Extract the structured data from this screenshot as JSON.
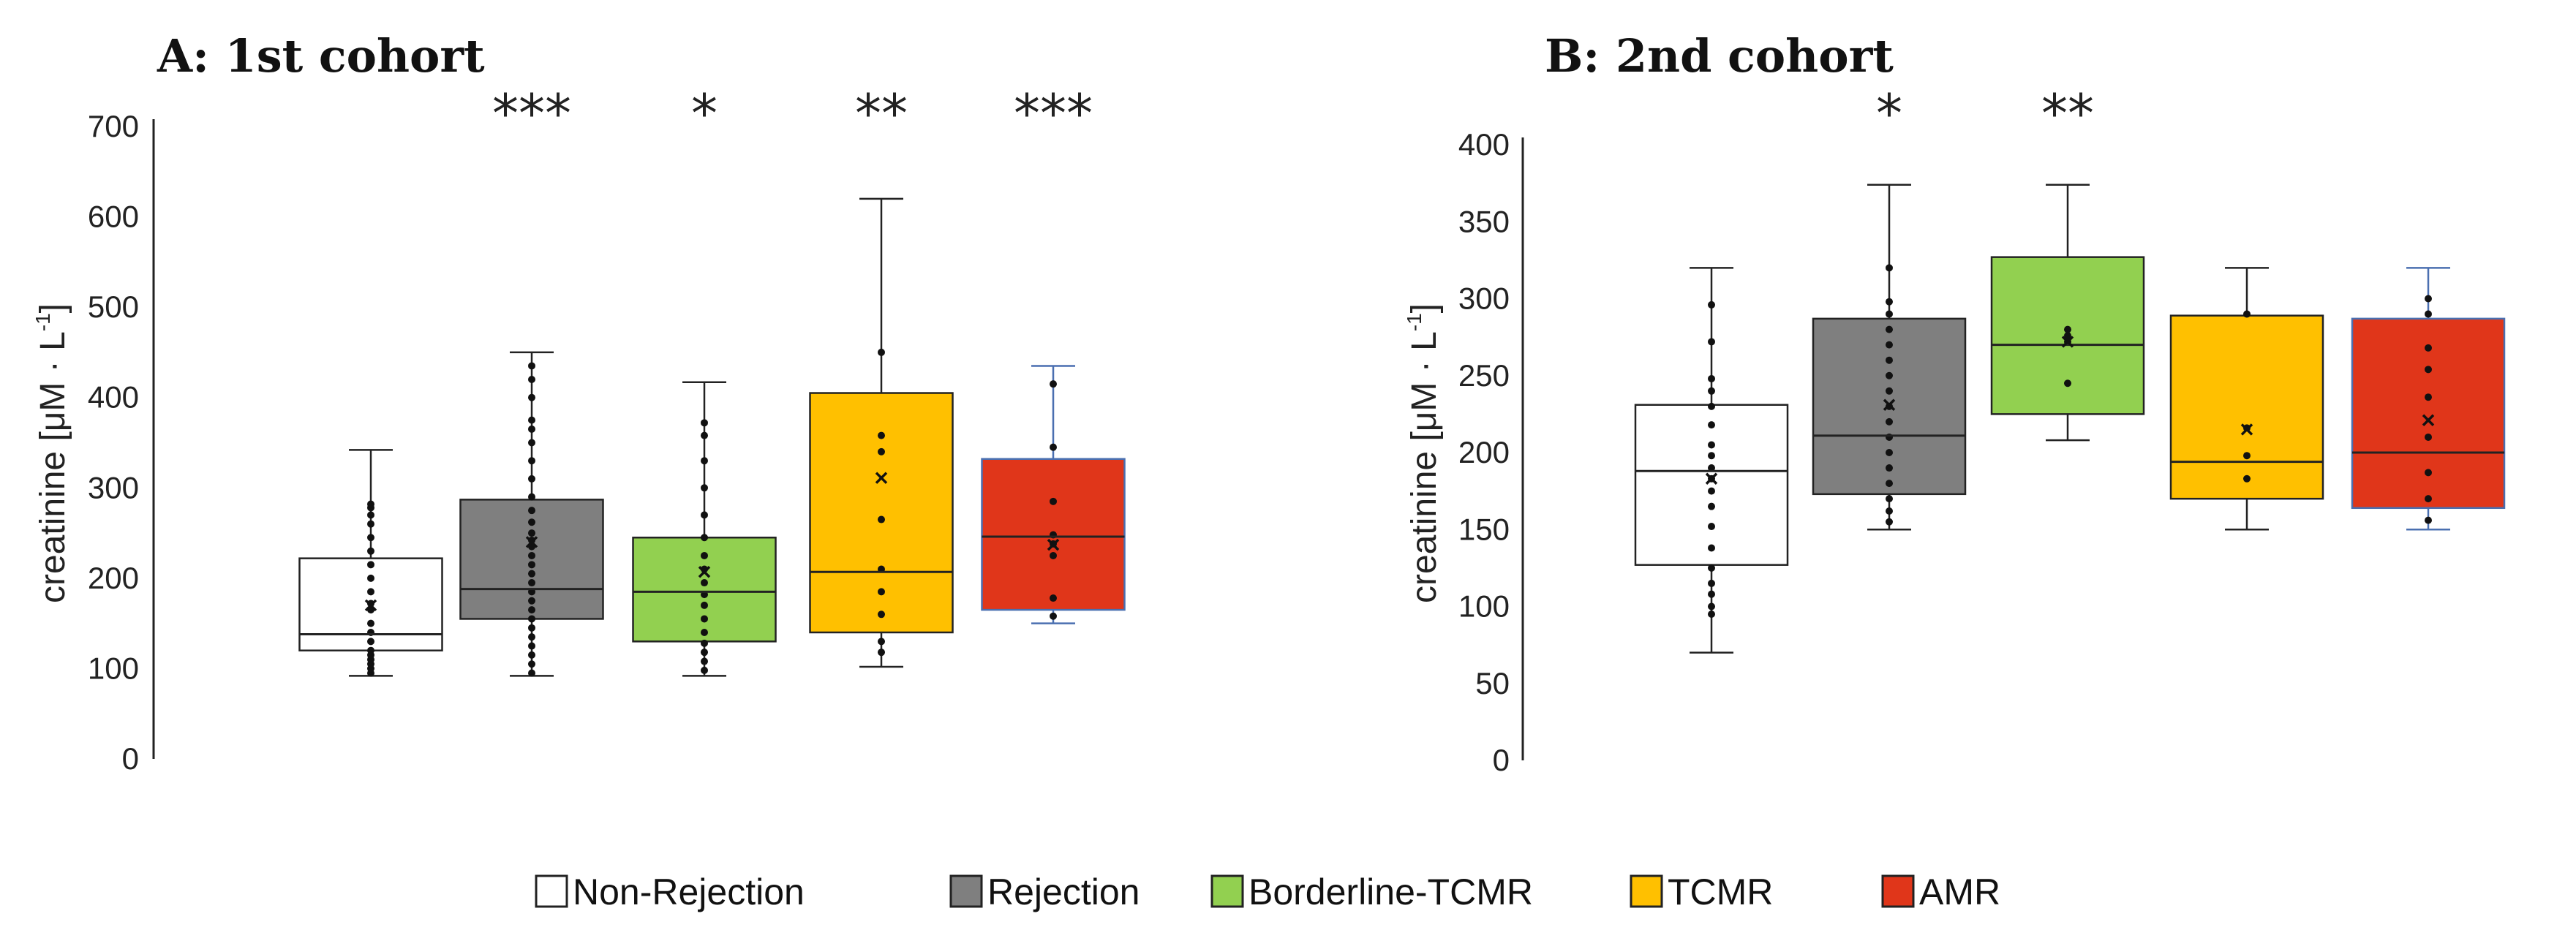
{
  "legend": [
    {
      "label": "Non-Rejection",
      "color": "#ffffff"
    },
    {
      "label": "Rejection",
      "color": "#7f7f7f"
    },
    {
      "label": "Borderline-TCMR",
      "color": "#92d050"
    },
    {
      "label": "TCMR",
      "color": "#ffc000"
    },
    {
      "label": "AMR",
      "color": "#e0361a"
    }
  ],
  "chart_data": [
    {
      "type": "box",
      "title": "A: 1st cohort",
      "ylabel": "creatinine [μM · L",
      "ylabel_sup": "-1",
      "ylabel_close": "]",
      "ylim": [
        0,
        700
      ],
      "yticks": [
        0,
        100,
        200,
        300,
        400,
        500,
        600,
        700
      ],
      "categories": [
        "Non-Rejection",
        "Rejection",
        "Borderline-TCMR",
        "TCMR",
        "AMR"
      ],
      "significance": [
        "",
        "***",
        "*",
        "**",
        "***"
      ],
      "boxes": [
        {
          "name": "Non-Rejection",
          "min": 92,
          "q1": 120,
          "median": 138,
          "q3": 222,
          "max": 342,
          "mean": 170,
          "points": [
            95,
            100,
            105,
            110,
            115,
            120,
            130,
            140,
            150,
            165,
            172,
            185,
            200,
            215,
            230,
            245,
            260,
            270,
            278,
            282
          ]
        },
        {
          "name": "Rejection",
          "min": 92,
          "q1": 155,
          "median": 188,
          "q3": 287,
          "max": 450,
          "mean": 240,
          "points": [
            95,
            105,
            115,
            125,
            135,
            145,
            155,
            165,
            175,
            185,
            195,
            205,
            215,
            225,
            235,
            242,
            250,
            262,
            275,
            290,
            310,
            330,
            350,
            365,
            375,
            400,
            420,
            435
          ]
        },
        {
          "name": "Borderline-TCMR",
          "min": 92,
          "q1": 130,
          "median": 185,
          "q3": 245,
          "max": 417,
          "mean": 207,
          "points": [
            98,
            108,
            118,
            128,
            140,
            155,
            170,
            182,
            195,
            210,
            225,
            245,
            270,
            300,
            330,
            358,
            372
          ]
        },
        {
          "name": "TCMR",
          "min": 102,
          "q1": 140,
          "median": 207,
          "q3": 405,
          "max": 620,
          "mean": 311,
          "points": [
            118,
            130,
            160,
            185,
            210,
            265,
            340,
            358,
            450
          ]
        },
        {
          "name": "AMR",
          "min": 150,
          "q1": 165,
          "median": 246,
          "q3": 332,
          "max": 435,
          "mean": 237,
          "points": [
            158,
            178,
            225,
            238,
            248,
            285,
            345,
            415
          ]
        }
      ]
    },
    {
      "type": "box",
      "title": "B: 2nd cohort",
      "ylabel": "creatinine [μM · L",
      "ylabel_sup": "-1",
      "ylabel_close": "]",
      "ylim": [
        0,
        400
      ],
      "yticks": [
        0,
        50,
        100,
        150,
        200,
        250,
        300,
        350,
        400
      ],
      "categories": [
        "Non-Rejection",
        "Rejection",
        "Borderline-TCMR",
        "TCMR",
        "AMR"
      ],
      "significance": [
        "",
        "*",
        "**",
        "",
        ""
      ],
      "boxes": [
        {
          "name": "Non-Rejection",
          "min": 70,
          "q1": 127,
          "median": 188,
          "q3": 231,
          "max": 320,
          "mean": 183,
          "points": [
            95,
            100,
            108,
            115,
            125,
            138,
            152,
            165,
            175,
            183,
            190,
            198,
            205,
            218,
            230,
            240,
            248,
            272,
            296
          ]
        },
        {
          "name": "Rejection",
          "min": 150,
          "q1": 173,
          "median": 211,
          "q3": 287,
          "max": 374,
          "mean": 231,
          "points": [
            155,
            162,
            170,
            180,
            190,
            200,
            210,
            220,
            230,
            240,
            250,
            260,
            270,
            280,
            290,
            298,
            320
          ]
        },
        {
          "name": "Borderline-TCMR",
          "min": 208,
          "q1": 225,
          "median": 270,
          "q3": 327,
          "max": 374,
          "mean": 272,
          "points": [
            245,
            272,
            276,
            280
          ]
        },
        {
          "name": "TCMR",
          "min": 150,
          "q1": 170,
          "median": 194,
          "q3": 289,
          "max": 320,
          "mean": 215,
          "points": [
            183,
            198,
            216,
            290
          ]
        },
        {
          "name": "AMR",
          "min": 150,
          "q1": 164,
          "median": 200,
          "q3": 287,
          "max": 320,
          "mean": 221,
          "points": [
            156,
            170,
            187,
            210,
            236,
            254,
            268,
            290,
            300
          ]
        }
      ]
    }
  ]
}
